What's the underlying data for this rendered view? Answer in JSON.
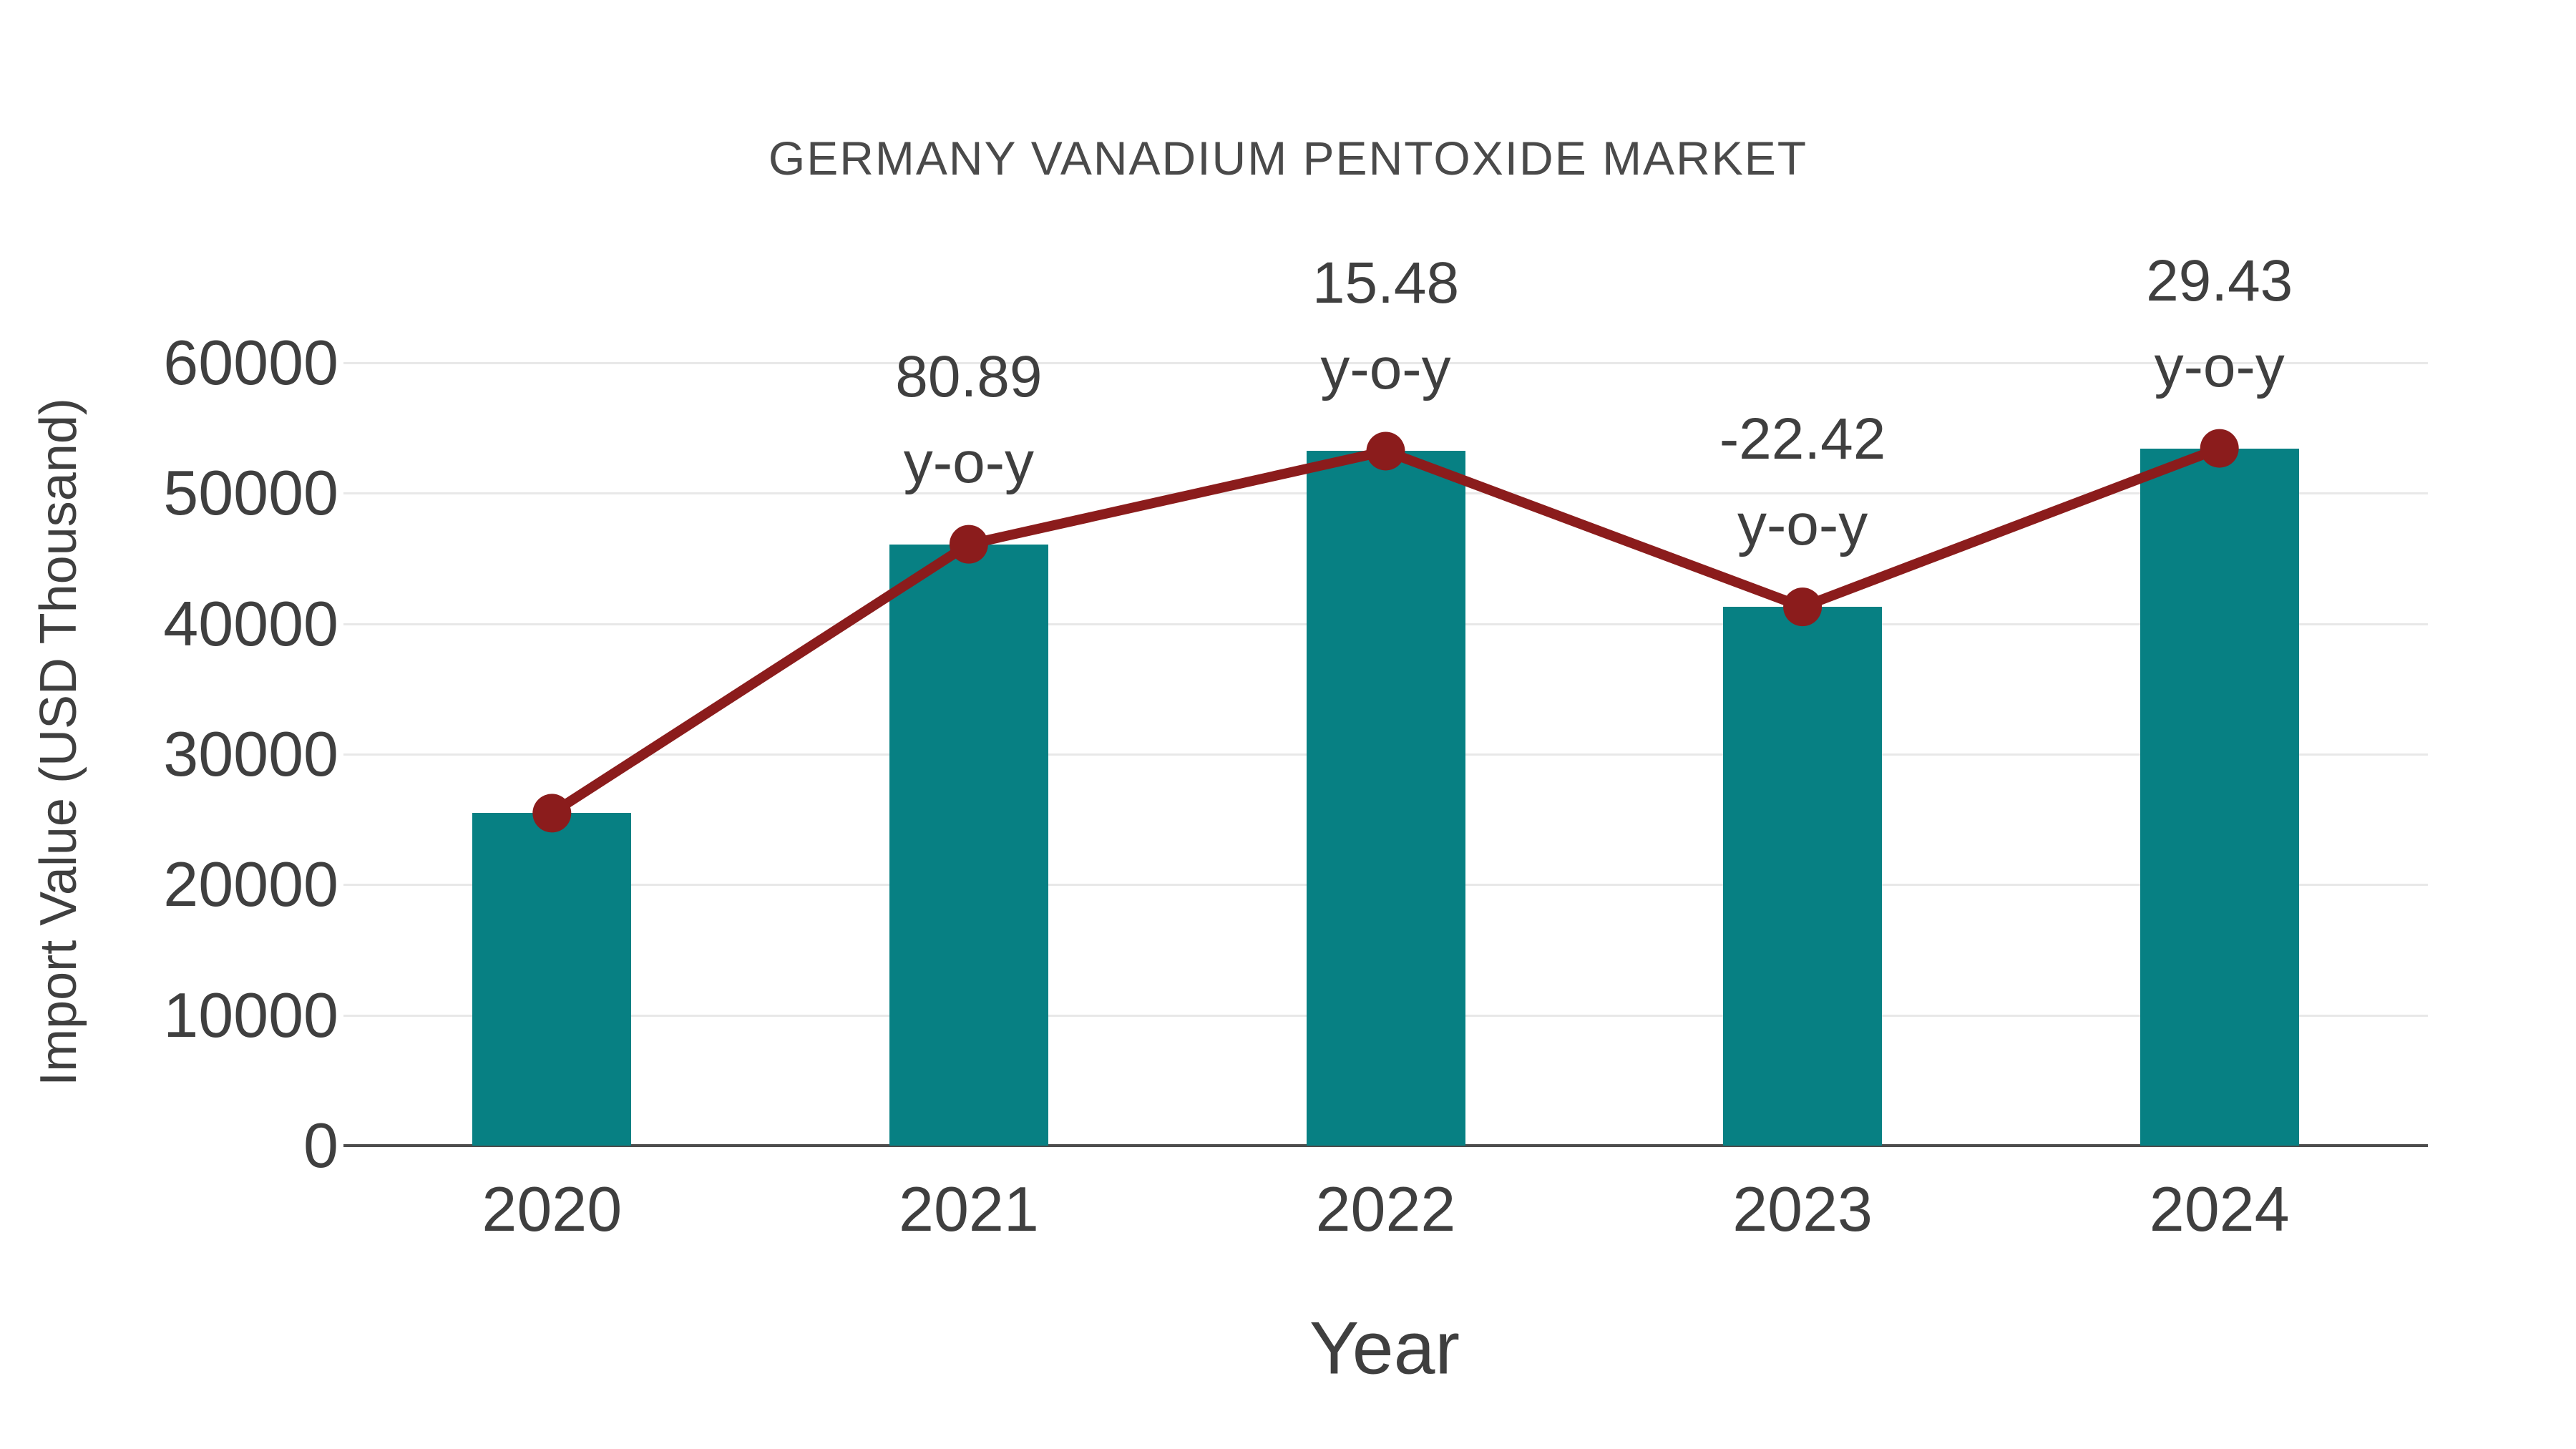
{
  "chart_data": {
    "type": "bar",
    "title": "GERMANY VANADIUM PENTOXIDE MARKET",
    "xlabel": "Year",
    "ylabel": "Import Value (USD Thousand)",
    "categories": [
      "2020",
      "2021",
      "2022",
      "2023",
      "2024"
    ],
    "series": [
      {
        "name": "Import Value",
        "type": "bar",
        "values": [
          25480,
          46090,
          53230,
          41290,
          53440
        ],
        "color": "#078083"
      },
      {
        "name": "Trend",
        "type": "line",
        "values": [
          25480,
          46090,
          53230,
          41290,
          53440
        ],
        "color": "#8b1c1c"
      }
    ],
    "annotations": [
      {
        "category_index": 1,
        "text": "80.89",
        "sub": "y-o-y"
      },
      {
        "category_index": 2,
        "text": "15.48",
        "sub": "y-o-y"
      },
      {
        "category_index": 3,
        "text": "-22.42",
        "sub": "y-o-y"
      },
      {
        "category_index": 4,
        "text": "29.43",
        "sub": "y-o-y"
      }
    ],
    "yticks": [
      0,
      10000,
      20000,
      30000,
      40000,
      50000,
      60000
    ],
    "ylim": [
      0,
      60000
    ],
    "grid": true,
    "legend": "none",
    "colors": {
      "bar": "#078083",
      "line": "#8b1c1c",
      "gridline": "#e8e8e8",
      "axis_line": "#4d4d4d",
      "text": "#3f3f3f",
      "title_text": "#4a4a4a"
    }
  }
}
